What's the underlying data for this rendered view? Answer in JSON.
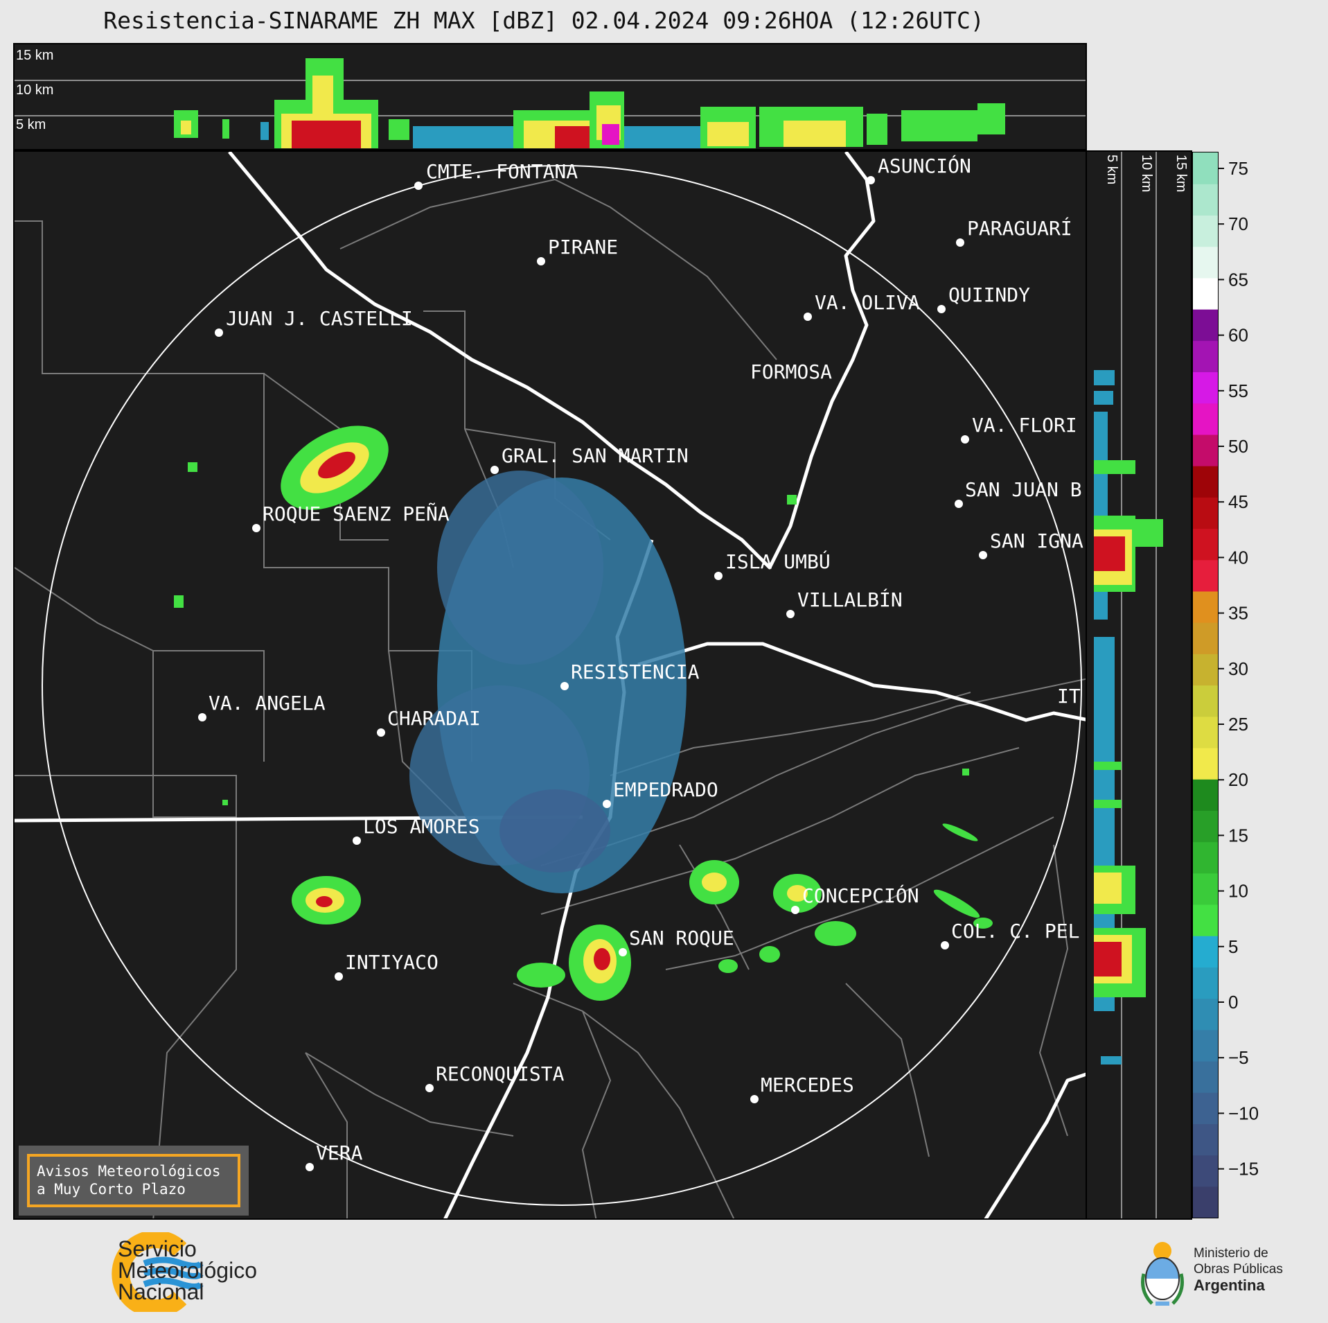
{
  "header": {
    "title": "Resistencia-SINARAME ZH MAX [dBZ] 02.04.2024 09:26HOA (12:26UTC)"
  },
  "top_profile": {
    "levels": [
      "15 km",
      "10 km",
      "5 km"
    ]
  },
  "side_profile": {
    "levels": [
      "5 km",
      "10 km",
      "15 km"
    ]
  },
  "colorbar": {
    "ticks": [
      "75",
      "70",
      "65",
      "60",
      "55",
      "50",
      "45",
      "40",
      "35",
      "30",
      "25",
      "20",
      "15",
      "10",
      "5",
      "0",
      "−5",
      "−10",
      "−15"
    ],
    "colors": [
      "#3a3f6b",
      "#3d4a79",
      "#3e5685",
      "#3d6291",
      "#39709c",
      "#357ea8",
      "#2f8db3",
      "#2a9cbf",
      "#25acd0",
      "#43e043",
      "#3acb3a",
      "#30b530",
      "#289f28",
      "#1e8a1e",
      "#f1e94b",
      "#dedc42",
      "#cbcd3b",
      "#c7b22f",
      "#cf9b27",
      "#e0901e",
      "#e61e3c",
      "#cf1220",
      "#b90c12",
      "#9e0408",
      "#c40c6a",
      "#e514c4",
      "#d619e6",
      "#a314b3",
      "#7c0d95",
      "#ffffff",
      "#e6f7ef",
      "#c8efdd",
      "#ace7cd",
      "#90dfbd"
    ]
  },
  "cities": [
    {
      "name": "CMTE. FONTANA"
    },
    {
      "name": "ASUNCIÓN"
    },
    {
      "name": "PARAGUARÍ"
    },
    {
      "name": "PIRANE"
    },
    {
      "name": "JUAN J. CASTELLI"
    },
    {
      "name": "VA. OLIVA"
    },
    {
      "name": "QUIINDY"
    },
    {
      "name": "FORMOSA"
    },
    {
      "name": "VA. FLORI"
    },
    {
      "name": "GRAL. SAN MARTIN"
    },
    {
      "name": "SAN JUAN B"
    },
    {
      "name": "ROQUE SAENZ PEÑA"
    },
    {
      "name": "SAN IGNA"
    },
    {
      "name": "ISLA UMBÚ"
    },
    {
      "name": "VILLALBÍN"
    },
    {
      "name": "RESISTENCIA"
    },
    {
      "name": "IT"
    },
    {
      "name": "VA. ANGELA"
    },
    {
      "name": "CHARADAI"
    },
    {
      "name": "EMPEDRADO"
    },
    {
      "name": "LOS AMORES"
    },
    {
      "name": "CONCEPCIÓN"
    },
    {
      "name": "SAN ROQUE"
    },
    {
      "name": "COL. C. PEL"
    },
    {
      "name": "INTIYACO"
    },
    {
      "name": "RECONQUISTA"
    },
    {
      "name": "MERCEDES"
    },
    {
      "name": "VERA"
    }
  ],
  "alert": {
    "line1": "Avisos Meteorológicos",
    "line2": "a Muy Corto Plazo"
  },
  "footer": {
    "smn_line1": "Servicio",
    "smn_line2": "Meteorológico",
    "smn_line3": "Nacional",
    "min_line1": "Ministerio de",
    "min_line2": "Obras Públicas",
    "min_line3": "Argentina"
  }
}
